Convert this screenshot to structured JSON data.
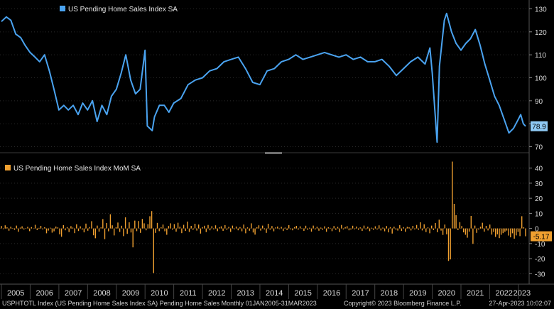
{
  "chart_data": [
    {
      "type": "line",
      "legend": "US Pending Home Sales Index SA",
      "color": "#4aa3f0",
      "ylim": [
        68,
        132
      ],
      "yticks": [
        70,
        80,
        90,
        100,
        110,
        120,
        130
      ],
      "last_value_label": "78.9",
      "series": [
        {
          "x": [
            2005.0,
            2005.17,
            2005.33,
            2005.5,
            2005.67,
            2005.83,
            2006.0,
            2006.17,
            2006.33,
            2006.5,
            2006.67,
            2006.83,
            2007.0,
            2007.17,
            2007.33,
            2007.5,
            2007.67,
            2007.83,
            2008.0,
            2008.17,
            2008.33,
            2008.5,
            2008.67,
            2008.83,
            2009.0,
            2009.17,
            2009.33,
            2009.5,
            2009.67,
            2009.83,
            2010.0,
            2010.08,
            2010.25,
            2010.33,
            2010.5,
            2010.67,
            2010.83,
            2011.0,
            2011.25,
            2011.5,
            2011.75,
            2012.0,
            2012.25,
            2012.5,
            2012.75,
            2013.0,
            2013.25,
            2013.5,
            2013.75,
            2014.0,
            2014.25,
            2014.5,
            2014.75,
            2015.0,
            2015.25,
            2015.5,
            2015.75,
            2016.0,
            2016.25,
            2016.5,
            2016.75,
            2017.0,
            2017.25,
            2017.5,
            2017.75,
            2018.0,
            2018.25,
            2018.5,
            2018.75,
            2019.0,
            2019.25,
            2019.5,
            2019.75,
            2019.92,
            2020.0,
            2020.17,
            2020.25,
            2020.42,
            2020.5,
            2020.67,
            2020.83,
            2021.0,
            2021.17,
            2021.33,
            2021.5,
            2021.67,
            2021.83,
            2022.0,
            2022.17,
            2022.33,
            2022.5,
            2022.67,
            2022.83,
            2023.0,
            2023.08,
            2023.17,
            2023.25
          ],
          "y": [
            124.5,
            126.5,
            125,
            119,
            117.5,
            114,
            111,
            109,
            107,
            110,
            103,
            95,
            86,
            88,
            86,
            88,
            84,
            89,
            86,
            90,
            81,
            88,
            84,
            92,
            95,
            102,
            110,
            99,
            93,
            95,
            112,
            79,
            77,
            83,
            88,
            88,
            85,
            89,
            91,
            97,
            99,
            100,
            103,
            104,
            107,
            108,
            109,
            104,
            98,
            97,
            103,
            104,
            107,
            108,
            110,
            108,
            109,
            110,
            111,
            110,
            109,
            110,
            108,
            109,
            107,
            107,
            108,
            105,
            101,
            104,
            107,
            109,
            106,
            113,
            102,
            72,
            105,
            125,
            128,
            120,
            115,
            112,
            115,
            117,
            121,
            114,
            106,
            99,
            92,
            88,
            82,
            76,
            78,
            82,
            84,
            80,
            78.9
          ]
        }
      ]
    },
    {
      "type": "bar",
      "legend": "US Pending Home Sales Index MoM SA",
      "color": "#f0a030",
      "ylim": [
        -35,
        45
      ],
      "yticks": [
        40,
        30,
        20,
        10,
        0,
        -10,
        -20,
        -30
      ],
      "last_value_label": "-5.17",
      "series": [
        {
          "values": [
            1.6,
            -0.4,
            2.1,
            0.8,
            -1.5,
            1.2,
            0.3,
            -0.9,
            1.9,
            -2.2,
            0.6,
            1.4,
            -0.7,
            0.2,
            1.1,
            -1.8,
            0.9,
            -0.3,
            2.4,
            -1.1,
            0.4,
            1.7,
            -0.6,
            0.8,
            -3.2,
            -1.4,
            0.5,
            -2.8,
            -1.9,
            1.3,
            0.7,
            -3.9,
            -5.5,
            2.2,
            -1.2,
            0.9,
            -2.4,
            1.5,
            0.6,
            -3.1,
            2.8,
            -1.7,
            1.4,
            -0.8,
            -2.6,
            3.2,
            -1.5,
            0.9,
            4.8,
            -4.5,
            -6.5,
            1.9,
            -2.1,
            0.7,
            6.2,
            -7.1,
            3.6,
            -1.9,
            9.4,
            2.1,
            -4.6,
            0.9,
            3.9,
            -2.3,
            1.8,
            -5.1,
            7.4,
            -3.6,
            4.1,
            -2.7,
            -12.5,
            5.2,
            -1.8,
            4.9,
            -2.9,
            6.3,
            3.4,
            -1.2,
            2.9,
            8.1,
            11.5,
            -29.5,
            -2.9,
            3.7,
            -1.8,
            0.8,
            2.6,
            -1.9,
            -4.2,
            1.6,
            3.4,
            -0.8,
            2.9,
            -2.1,
            3.8,
            1.2,
            -3.1,
            2.4,
            -1.6,
            4.6,
            -2.3,
            1.7,
            -0.9,
            3.1,
            -1.4,
            2.6,
            -3.4,
            0.9,
            1.8,
            -2.4,
            2.3,
            -1.2,
            1.5,
            -0.6,
            2.1,
            -1.8,
            0.8,
            1.4,
            -1.6,
            2.2,
            -0.9,
            1.1,
            -2.3,
            1.9,
            -0.5,
            1.3,
            -1.2,
            0.9,
            -1.9,
            2.6,
            -3.2,
            0.7,
            -1.5,
            3.4,
            -2.7,
            -4.1,
            0.8,
            2.1,
            -1.4,
            1.9,
            -0.6,
            -2.9,
            3.1,
            -0.8,
            1.6,
            -1.9,
            0.7,
            1.3,
            -0.4,
            1.1,
            -1.7,
            0.6,
            -1.1,
            2.2,
            -0.6,
            -1.2,
            0.9,
            1.7,
            -0.8,
            1.4,
            -0.3,
            -1.6,
            1.8,
            -0.9,
            0.5,
            -2.1,
            1.9,
            -0.7,
            1.2,
            -1.5,
            0.6,
            -0.9,
            1.4,
            -2.2,
            0.8,
            0.4,
            -1.8,
            1.6,
            -0.9,
            1.1,
            -2.4,
            2.3,
            -0.6,
            0.9,
            1.5,
            -1.2,
            -0.7,
            1.8,
            -0.5,
            1.3,
            -0.9,
            0.7,
            -1.6,
            1.9,
            -0.6,
            1.2,
            -1.8,
            0.5,
            -0.9,
            1.4,
            -0.7,
            2.1,
            -1.3,
            0.6,
            -1.9,
            1.6,
            -2.6,
            0.9,
            -3.4,
            1.2,
            -0.8,
            -1.4,
            2.2,
            -1.6,
            0.9,
            -2.2,
            1.1,
            0.8,
            -1.3,
            1.7,
            -0.6,
            2.3,
            -0.9,
            4.1,
            -1.3,
            2.8,
            -2.4,
            0.7,
            -3.2,
            1.9,
            -1.1,
            3.6,
            -2.5,
            5.8,
            -1.4,
            -4.3,
            2.6,
            -3.9,
            -21.5,
            -20.5,
            44.3,
            16.3,
            8.8,
            -1.1,
            4.2,
            1.6,
            -2.6,
            -4.2,
            -6.1,
            -2.1,
            8.3,
            -10.2,
            1.9,
            -2.9,
            -0.7,
            1.2,
            3.8,
            -2.1,
            1.7,
            -1.3,
            2.6,
            -4.1,
            -2.3,
            -5.6,
            -3.9,
            -6.4,
            -4.2,
            -3.1,
            -2.2,
            -1.4,
            -4.7,
            -5.9,
            -3.2,
            -6.8,
            -4.6,
            -2.3,
            -5.1,
            8.1,
            0.8,
            -5.17
          ]
        }
      ]
    }
  ],
  "x_axis": {
    "years": [
      "2005",
      "2006",
      "2007",
      "2008",
      "2009",
      "2010",
      "2011",
      "2012",
      "2013",
      "2014",
      "2015",
      "2016",
      "2017",
      "2018",
      "2019",
      "2020",
      "2021",
      "2022",
      "2023"
    ]
  },
  "footer": {
    "left": "USPHTOTL Index (US Pending Home Sales Index SA) Pending Home Sales  Monthly 01JAN2005-31MAR2023",
    "middle": "Copyright© 2023 Bloomberg Finance L.P.",
    "right": "27-Apr-2023 10:02:07"
  }
}
